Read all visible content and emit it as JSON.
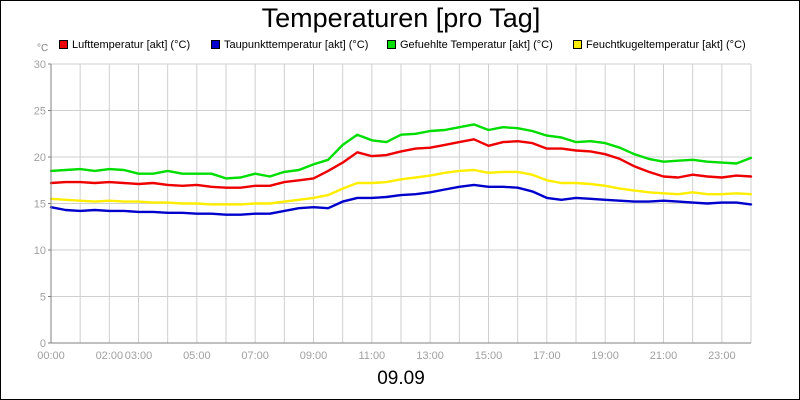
{
  "chart_data": {
    "type": "line",
    "title": "Temperaturen [pro Tag]",
    "unit_label": "°C",
    "xlabel": "09.09",
    "xlim": [
      0,
      24
    ],
    "ylim": [
      0,
      30
    ],
    "yticks": [
      0,
      5,
      10,
      15,
      20,
      25,
      30
    ],
    "xticks": [
      {
        "value": 0,
        "label": "00:00"
      },
      {
        "value": 2,
        "label": "02:00"
      },
      {
        "value": 3,
        "label": "03:00"
      },
      {
        "value": 5,
        "label": "05:00"
      },
      {
        "value": 7,
        "label": "07:00"
      },
      {
        "value": 9,
        "label": "09:00"
      },
      {
        "value": 11,
        "label": "11:00"
      },
      {
        "value": 13,
        "label": "13:00"
      },
      {
        "value": 15,
        "label": "15:00"
      },
      {
        "value": 17,
        "label": "17:00"
      },
      {
        "value": 19,
        "label": "19:00"
      },
      {
        "value": 21,
        "label": "21:00"
      },
      {
        "value": 23,
        "label": "23:00"
      }
    ],
    "x": [
      0,
      0.5,
      1,
      1.5,
      2,
      2.5,
      3,
      3.5,
      4,
      4.5,
      5,
      5.5,
      6,
      6.5,
      7,
      7.5,
      8,
      8.5,
      9,
      9.5,
      10,
      10.5,
      11,
      11.5,
      12,
      12.5,
      13,
      13.5,
      14,
      14.5,
      15,
      15.5,
      16,
      16.5,
      17,
      17.5,
      18,
      18.5,
      19,
      19.5,
      20,
      20.5,
      21,
      21.5,
      22,
      22.5,
      23,
      23.5,
      24
    ],
    "legend_position": "top",
    "grid": true,
    "series": [
      {
        "name": "Lufttemperatur [akt] (°C)",
        "color": "#ee0000",
        "values": [
          17.2,
          17.3,
          17.3,
          17.2,
          17.3,
          17.2,
          17.1,
          17.2,
          17.0,
          16.9,
          17.0,
          16.8,
          16.7,
          16.7,
          16.9,
          16.9,
          17.3,
          17.5,
          17.7,
          18.5,
          19.4,
          20.5,
          20.1,
          20.2,
          20.6,
          20.9,
          21.0,
          21.3,
          21.6,
          21.9,
          21.2,
          21.6,
          21.7,
          21.5,
          20.9,
          20.9,
          20.7,
          20.6,
          20.3,
          19.8,
          19.0,
          18.4,
          17.9,
          17.8,
          18.1,
          17.9,
          17.8,
          18.0,
          17.9
        ]
      },
      {
        "name": "Taupunkttemperatur [akt] (°C)",
        "color": "#0000cc",
        "values": [
          14.6,
          14.3,
          14.2,
          14.3,
          14.2,
          14.2,
          14.1,
          14.1,
          14.0,
          14.0,
          13.9,
          13.9,
          13.8,
          13.8,
          13.9,
          13.9,
          14.2,
          14.5,
          14.6,
          14.5,
          15.2,
          15.6,
          15.6,
          15.7,
          15.9,
          16.0,
          16.2,
          16.5,
          16.8,
          17.0,
          16.8,
          16.8,
          16.7,
          16.3,
          15.6,
          15.4,
          15.6,
          15.5,
          15.4,
          15.3,
          15.2,
          15.2,
          15.3,
          15.2,
          15.1,
          15.0,
          15.1,
          15.1,
          14.9
        ]
      },
      {
        "name": "Gefuehlte Temperatur [akt] (°C)",
        "color": "#00dd00",
        "values": [
          18.5,
          18.6,
          18.7,
          18.5,
          18.7,
          18.6,
          18.2,
          18.2,
          18.5,
          18.2,
          18.2,
          18.2,
          17.7,
          17.8,
          18.2,
          17.9,
          18.4,
          18.6,
          19.2,
          19.7,
          21.3,
          22.4,
          21.8,
          21.6,
          22.4,
          22.5,
          22.8,
          22.9,
          23.2,
          23.5,
          22.9,
          23.2,
          23.1,
          22.8,
          22.3,
          22.1,
          21.6,
          21.7,
          21.5,
          21.0,
          20.3,
          19.8,
          19.5,
          19.6,
          19.7,
          19.5,
          19.4,
          19.3,
          19.9
        ]
      },
      {
        "name": "Feuchtkugeltemperatur [akt] (°C)",
        "color": "#ffee00",
        "values": [
          15.5,
          15.4,
          15.3,
          15.2,
          15.3,
          15.2,
          15.2,
          15.1,
          15.1,
          15.0,
          15.0,
          14.9,
          14.9,
          14.9,
          15.0,
          15.0,
          15.2,
          15.4,
          15.6,
          15.9,
          16.6,
          17.2,
          17.2,
          17.3,
          17.6,
          17.8,
          18.0,
          18.3,
          18.5,
          18.6,
          18.3,
          18.4,
          18.4,
          18.1,
          17.5,
          17.2,
          17.2,
          17.1,
          16.9,
          16.6,
          16.4,
          16.2,
          16.1,
          16.0,
          16.2,
          16.0,
          16.0,
          16.1,
          16.0
        ]
      }
    ]
  }
}
